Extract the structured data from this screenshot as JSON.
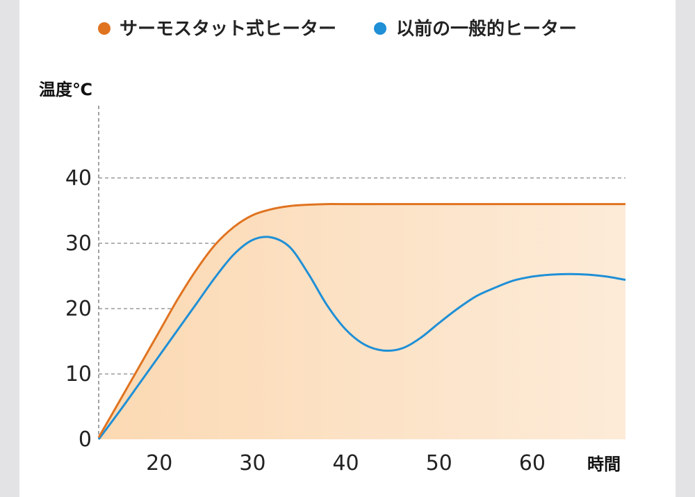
{
  "chart_data": {
    "type": "line",
    "title": "",
    "xlabel": "時間",
    "ylabel": "温度℃",
    "x_ticks": [
      "20",
      "30",
      "40",
      "50",
      "60"
    ],
    "y_ticks": [
      "0",
      "10",
      "20",
      "30",
      "40"
    ],
    "xlim": [
      13.5,
      70
    ],
    "ylim": [
      0,
      50
    ],
    "grid": "horizontal dashed",
    "legend_position": "top",
    "series": [
      {
        "name": "サーモスタット式ヒーター",
        "color": "#e07320",
        "fill": true,
        "x": [
          13.5,
          16,
          18,
          20,
          22,
          24,
          26,
          28,
          30,
          32,
          34,
          36,
          38,
          40,
          50,
          60,
          70
        ],
        "y": [
          0.3,
          6.5,
          11.5,
          16.5,
          21.5,
          26.0,
          29.8,
          32.5,
          34.3,
          35.2,
          35.7,
          35.9,
          36.0,
          36.0,
          36.0,
          36.0,
          36.0
        ]
      },
      {
        "name": "以前の一般的ヒーター",
        "color": "#1f8fd6",
        "fill": false,
        "x": [
          13.5,
          16,
          18,
          20,
          22,
          24,
          26,
          28,
          30,
          32,
          34,
          36,
          38,
          40,
          42,
          44,
          46,
          48,
          50,
          52,
          54,
          56,
          58,
          60,
          62,
          64,
          66,
          68,
          70
        ],
        "y": [
          0,
          4.8,
          8.8,
          12.8,
          16.8,
          20.8,
          24.8,
          28.3,
          30.5,
          30.9,
          29.4,
          25.3,
          20.5,
          16.8,
          14.5,
          13.6,
          13.9,
          15.5,
          17.8,
          20.0,
          21.9,
          23.2,
          24.3,
          24.9,
          25.2,
          25.3,
          25.2,
          24.9,
          24.4
        ]
      }
    ]
  }
}
